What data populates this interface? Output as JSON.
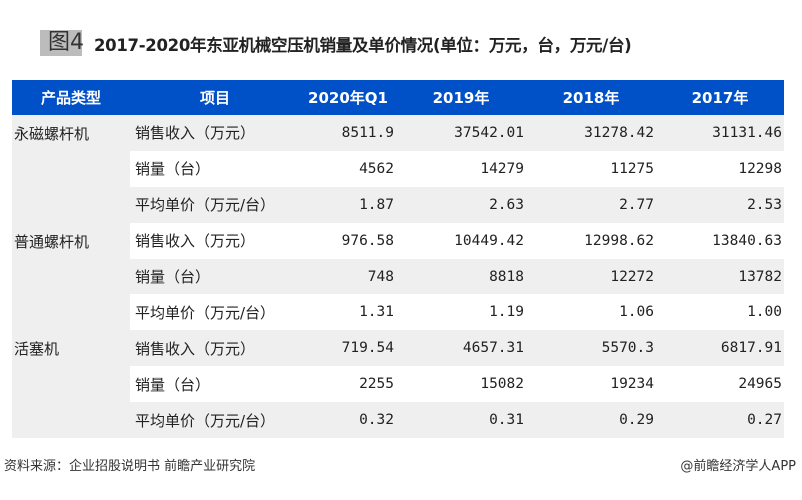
{
  "figure_label": "图4",
  "title": "2017-2020年东亚机械空压机销量及单价情况(单位：万元，台，万元/台)",
  "table": {
    "headers": [
      "产品类型",
      "项目",
      "2020年Q1",
      "2019年",
      "2018年",
      "2017年"
    ],
    "groups": [
      {
        "category": "永磁螺杆机",
        "rows": [
          {
            "item": "销售收入（万元）",
            "values": [
              "8511.9",
              "37542.01",
              "31278.42",
              "31131.46"
            ]
          },
          {
            "item": "销量（台）",
            "values": [
              "4562",
              "14279",
              "11275",
              "12298"
            ]
          },
          {
            "item": "平均单价（万元/台）",
            "values": [
              "1.87",
              "2.63",
              "2.77",
              "2.53"
            ]
          }
        ]
      },
      {
        "category": "普通螺杆机",
        "rows": [
          {
            "item": "销售收入（万元）",
            "values": [
              "976.58",
              "10449.42",
              "12998.62",
              "13840.63"
            ]
          },
          {
            "item": "销量（台）",
            "values": [
              "748",
              "8818",
              "12272",
              "13782"
            ]
          },
          {
            "item": "平均单价（万元/台）",
            "values": [
              "1.31",
              "1.19",
              "1.06",
              "1.00"
            ]
          }
        ]
      },
      {
        "category": "活塞机",
        "rows": [
          {
            "item": "销售收入（万元）",
            "values": [
              "719.54",
              "4657.31",
              "5570.3",
              "6817.91"
            ]
          },
          {
            "item": "销量（台）",
            "values": [
              "2255",
              "15082",
              "19234",
              "24965"
            ]
          },
          {
            "item": "平均单价（万元/台）",
            "values": [
              "0.32",
              "0.31",
              "0.29",
              "0.27"
            ]
          }
        ]
      }
    ]
  },
  "footer": {
    "source": "资料来源：企业招股说明书 前瞻产业研究院",
    "credit": "@前瞻经济学人APP"
  },
  "colors": {
    "header_bg": "#0050c8",
    "stripe": "#efefef"
  }
}
